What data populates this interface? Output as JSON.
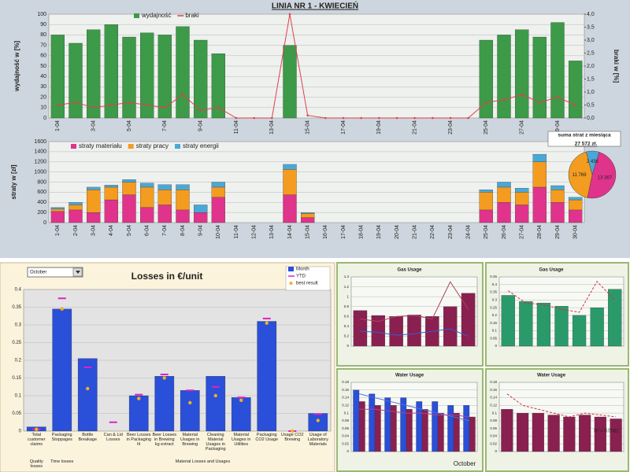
{
  "chart_data": [
    {
      "type": "bar",
      "title": "LINIA NR 1 - KWIECIEŃ",
      "ylabel": "wydajność w [%]",
      "y2label": "braki w [%]",
      "categories": [
        "1-04",
        null,
        "3-04",
        null,
        "5-04",
        null,
        "7-04",
        null,
        "9-04",
        null,
        "11-04",
        null,
        "13-04",
        null,
        "15-04",
        null,
        "17-04",
        null,
        "19-04",
        null,
        "21-04",
        null,
        "23-04",
        null,
        "25-04",
        null,
        "27-04",
        null,
        "29-04",
        null
      ],
      "series": [
        {
          "name": "wydajność",
          "style": "bar",
          "color": "#3c9a48",
          "values": [
            80,
            72,
            85,
            90,
            78,
            82,
            80,
            88,
            75,
            62,
            0,
            0,
            0,
            70,
            0,
            0,
            0,
            0,
            0,
            0,
            0,
            0,
            0,
            0,
            75,
            80,
            85,
            78,
            92,
            55
          ]
        },
        {
          "name": "braki",
          "style": "line",
          "axis": "y2",
          "color": "#e0404e",
          "values": [
            0.5,
            0.6,
            0.4,
            0.5,
            0.6,
            0.5,
            0.4,
            0.9,
            0.3,
            0.4,
            0,
            0,
            0,
            4.0,
            0.1,
            0,
            0,
            0,
            0,
            0,
            0,
            0,
            0,
            0,
            0.6,
            0.7,
            0.9,
            0.6,
            0.8,
            0.5
          ]
        }
      ],
      "ylim": [
        0,
        100
      ],
      "yticks": [
        0,
        10,
        20,
        30,
        40,
        50,
        60,
        70,
        80,
        90,
        100
      ],
      "y2lim": [
        0,
        4
      ],
      "y2ticks": [
        {
          "value": 0,
          "label": "0,0"
        },
        {
          "value": 0.5,
          "label": "0,5"
        },
        {
          "value": 1,
          "label": "1,0"
        },
        {
          "value": 1.5,
          "label": "1,5"
        },
        {
          "value": 2,
          "label": "2,0"
        },
        {
          "value": 2.5,
          "label": "2,5"
        },
        {
          "value": 3,
          "label": "3,0"
        },
        {
          "value": 3.5,
          "label": "3,5"
        },
        {
          "value": 4,
          "label": "4,0"
        }
      ],
      "grid": true
    },
    {
      "type": "bar",
      "stacked": true,
      "ylabel": "straty w [zł]",
      "categories": [
        "1-04",
        "2-04",
        "3-04",
        "4-04",
        "5-04",
        "6-04",
        "7-04",
        "8-04",
        "9-04",
        "10-04",
        "11-04",
        "12-04",
        "13-04",
        "14-04",
        "15-04",
        "16-04",
        "17-04",
        "18-04",
        "19-04",
        "20-04",
        "21-04",
        "22-04",
        "23-04",
        "24-04",
        "25-04",
        "26-04",
        "27-04",
        "28-04",
        "29-04",
        "30-04"
      ],
      "series": [
        {
          "name": "straty materiału",
          "style": "bar",
          "color": "#e0338c",
          "values": [
            220,
            250,
            200,
            450,
            550,
            300,
            350,
            250,
            200,
            500,
            0,
            0,
            0,
            550,
            100,
            0,
            0,
            0,
            0,
            0,
            0,
            0,
            0,
            0,
            250,
            400,
            350,
            700,
            400,
            250
          ]
        },
        {
          "name": "straty pracy",
          "style": "bar",
          "color": "#f39c20",
          "values": [
            50,
            100,
            450,
            250,
            250,
            400,
            300,
            400,
            0,
            200,
            0,
            0,
            0,
            500,
            80,
            0,
            0,
            0,
            0,
            0,
            0,
            0,
            0,
            0,
            350,
            300,
            250,
            500,
            250,
            200
          ]
        },
        {
          "name": "straty energii",
          "style": "bar",
          "color": "#4aa8d8",
          "values": [
            30,
            50,
            50,
            40,
            50,
            80,
            100,
            100,
            150,
            100,
            0,
            0,
            0,
            100,
            20,
            0,
            0,
            0,
            0,
            0,
            0,
            0,
            0,
            0,
            50,
            100,
            80,
            150,
            80,
            50
          ]
        }
      ],
      "ylim": [
        0,
        1600
      ],
      "yticks": [
        0,
        200,
        400,
        600,
        800,
        1000,
        1200,
        1400,
        1600
      ],
      "grid": true
    },
    {
      "type": "pie",
      "title": "suma strat z miesiąca",
      "subtitle": "27 572 zł.",
      "values": [
        13367,
        11769,
        2436
      ],
      "value_labels": [
        "13 367",
        "11 769",
        "2 436"
      ],
      "colors": [
        "#e0338c",
        "#f39c20",
        "#4aa8d8"
      ]
    },
    {
      "type": "bar",
      "title": "Losses in €/unit",
      "selector": "October",
      "categories": [
        "Total customer claims",
        "Packaging Stoppages",
        "Bottle Breakage",
        "Can & Lid Losses",
        "Beer Losses in Packaging hl",
        "Beer Losses in Brewing kg extract",
        "Material Usages in Brewing",
        "Cleaning Material Usages in Packaging",
        "Material Usages in Utilities",
        "Packaging CO2 Usage",
        "Usage CO2 Brewing",
        "Usage of Laboratory Materials"
      ],
      "groups": [
        "Quality losses",
        "Time losses",
        "Material Losses and Usages"
      ],
      "series": [
        {
          "name": "Month",
          "style": "bar",
          "color": "#2a4fd8",
          "values": [
            0.012,
            0.345,
            0.205,
            null,
            0.1,
            0.155,
            0.115,
            0.155,
            0.095,
            0.31,
            0,
            0.05
          ]
        },
        {
          "name": "YTD",
          "style": "dash",
          "color": "#e020c8",
          "values": [
            0.005,
            0.375,
            0.18,
            0.025,
            0.103,
            0.16,
            0.115,
            0.125,
            0.095,
            0.318,
            0,
            0.048
          ]
        },
        {
          "name": "best result",
          "style": "dot",
          "color": "#f0b020",
          "values": [
            0.005,
            0.345,
            0.12,
            null,
            0.092,
            0.15,
            0.08,
            0.1,
            0.087,
            0.305,
            0,
            0.03
          ]
        }
      ],
      "ylim": [
        0,
        0.4
      ],
      "yticks": [
        0,
        0.05,
        0.1,
        0.15,
        0.2,
        0.25,
        0.3,
        0.35,
        0.4
      ],
      "grid": true
    },
    {
      "type": "bar",
      "title": "Gas Usage",
      "categories": [
        null,
        null,
        null,
        null,
        null,
        null,
        null
      ],
      "series": [
        {
          "style": "bar",
          "color": "#8a2050",
          "values": [
            0.72,
            0.62,
            0.6,
            0.63,
            0.6,
            0.8,
            1.07
          ]
        },
        {
          "style": "line",
          "color": "#3060d0",
          "values": [
            0.3,
            0.28,
            0.22,
            0.25,
            0.3,
            0.35,
            0.2
          ]
        },
        {
          "style": "line",
          "color": "#b04060",
          "values": [
            0.55,
            0.5,
            0.6,
            0.62,
            0.55,
            1.3,
            0.75
          ]
        }
      ],
      "ylim": [
        0,
        1.4
      ],
      "yticks": [
        0,
        0.2,
        0.4,
        0.6,
        0.8,
        1,
        1.2,
        1.4
      ],
      "grid": true
    },
    {
      "type": "bar",
      "title": "Gas Usage",
      "categories": [
        null,
        null,
        null,
        null,
        null,
        null,
        null
      ],
      "series": [
        {
          "style": "bar",
          "color": "#2a9a6a",
          "values": [
            0.33,
            0.29,
            0.28,
            0.26,
            0.2,
            0.25,
            0.37
          ]
        },
        {
          "style": "line",
          "dashed": true,
          "color": "#d03040",
          "values": [
            0.36,
            0.28,
            0.27,
            0.24,
            0.22,
            0.42,
            0.3
          ]
        }
      ],
      "ylim": [
        0,
        0.45
      ],
      "yticks": [
        0,
        0.05,
        0.1,
        0.15,
        0.2,
        0.25,
        0.3,
        0.35,
        0.4,
        0.45
      ],
      "grid": true
    },
    {
      "type": "bar",
      "title": "Water Usage",
      "note": "October",
      "categories": [
        null,
        null,
        null,
        null,
        null,
        null,
        null,
        null
      ],
      "series": [
        {
          "style": "bar",
          "color": "#2a4fd8",
          "values": [
            0.16,
            0.15,
            0.14,
            0.14,
            0.13,
            0.13,
            0.12,
            0.12
          ]
        },
        {
          "style": "bar",
          "color": "#8a2050",
          "values": [
            0.13,
            0.12,
            0.12,
            0.11,
            0.11,
            0.1,
            0.1,
            0.09
          ]
        },
        {
          "style": "line",
          "color": "#5070e0",
          "values": [
            0.15,
            0.14,
            0.13,
            0.12,
            0.11,
            0.1,
            0.09,
            0.08
          ]
        },
        {
          "style": "line",
          "color": "#b04090",
          "values": [
            0.11,
            0.11,
            0.105,
            0.1,
            0.1,
            0.095,
            0.095,
            0.09
          ]
        }
      ],
      "ylim": [
        0,
        0.18
      ],
      "yticks": [
        0,
        0.02,
        0.04,
        0.06,
        0.08,
        0.1,
        0.12,
        0.14,
        0.16,
        0.18
      ],
      "grid": true
    },
    {
      "type": "bar",
      "title": "Water Usage",
      "note": "R² = 0.0082",
      "categories": [
        null,
        null,
        null,
        null,
        null,
        null,
        null,
        null
      ],
      "series": [
        {
          "style": "bar",
          "color": "#8a2050",
          "values": [
            0.11,
            0.1,
            0.1,
            0.095,
            0.09,
            0.095,
            0.09,
            0.085
          ]
        },
        {
          "style": "line",
          "dashed": true,
          "color": "#d03040",
          "values": [
            0.15,
            0.12,
            0.11,
            0.1,
            0.09,
            0.1,
            0.095,
            0.09
          ]
        }
      ],
      "ylim": [
        0,
        0.18
      ],
      "yticks": [
        0,
        0.02,
        0.04,
        0.06,
        0.08,
        0.1,
        0.12,
        0.14,
        0.16,
        0.18
      ],
      "grid": true
    }
  ]
}
